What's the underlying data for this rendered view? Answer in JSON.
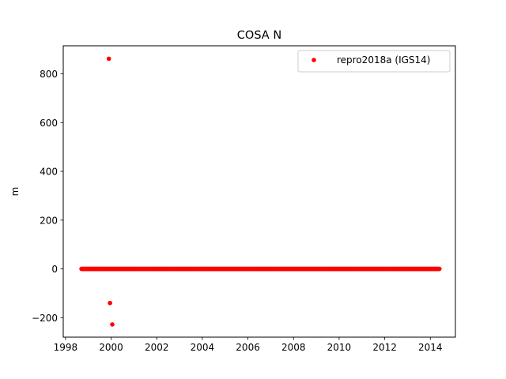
{
  "chart_data": {
    "type": "scatter",
    "title": "COSA N",
    "xlabel": "",
    "ylabel": "m",
    "xlim": [
      1997.9,
      2015.1
    ],
    "ylim": [
      -280,
      915
    ],
    "xticks": [
      1998,
      2000,
      2002,
      2004,
      2006,
      2008,
      2010,
      2012,
      2014
    ],
    "yticks": [
      -200,
      0,
      200,
      400,
      600,
      800
    ],
    "ytick_labels": [
      "−200",
      "0",
      "200",
      "400",
      "600",
      "800"
    ],
    "grid": false,
    "legend": "top-right",
    "series": [
      {
        "name": "repro2018a (IGS14)",
        "color": "#ff0000",
        "marker": "dot",
        "dense_range": {
          "x_start": 1998.7,
          "x_end": 2014.4,
          "y": 0
        },
        "outliers": [
          {
            "x": 1999.9,
            "y": 862
          },
          {
            "x": 1999.95,
            "y": -140
          },
          {
            "x": 2000.05,
            "y": -228
          }
        ]
      }
    ]
  }
}
